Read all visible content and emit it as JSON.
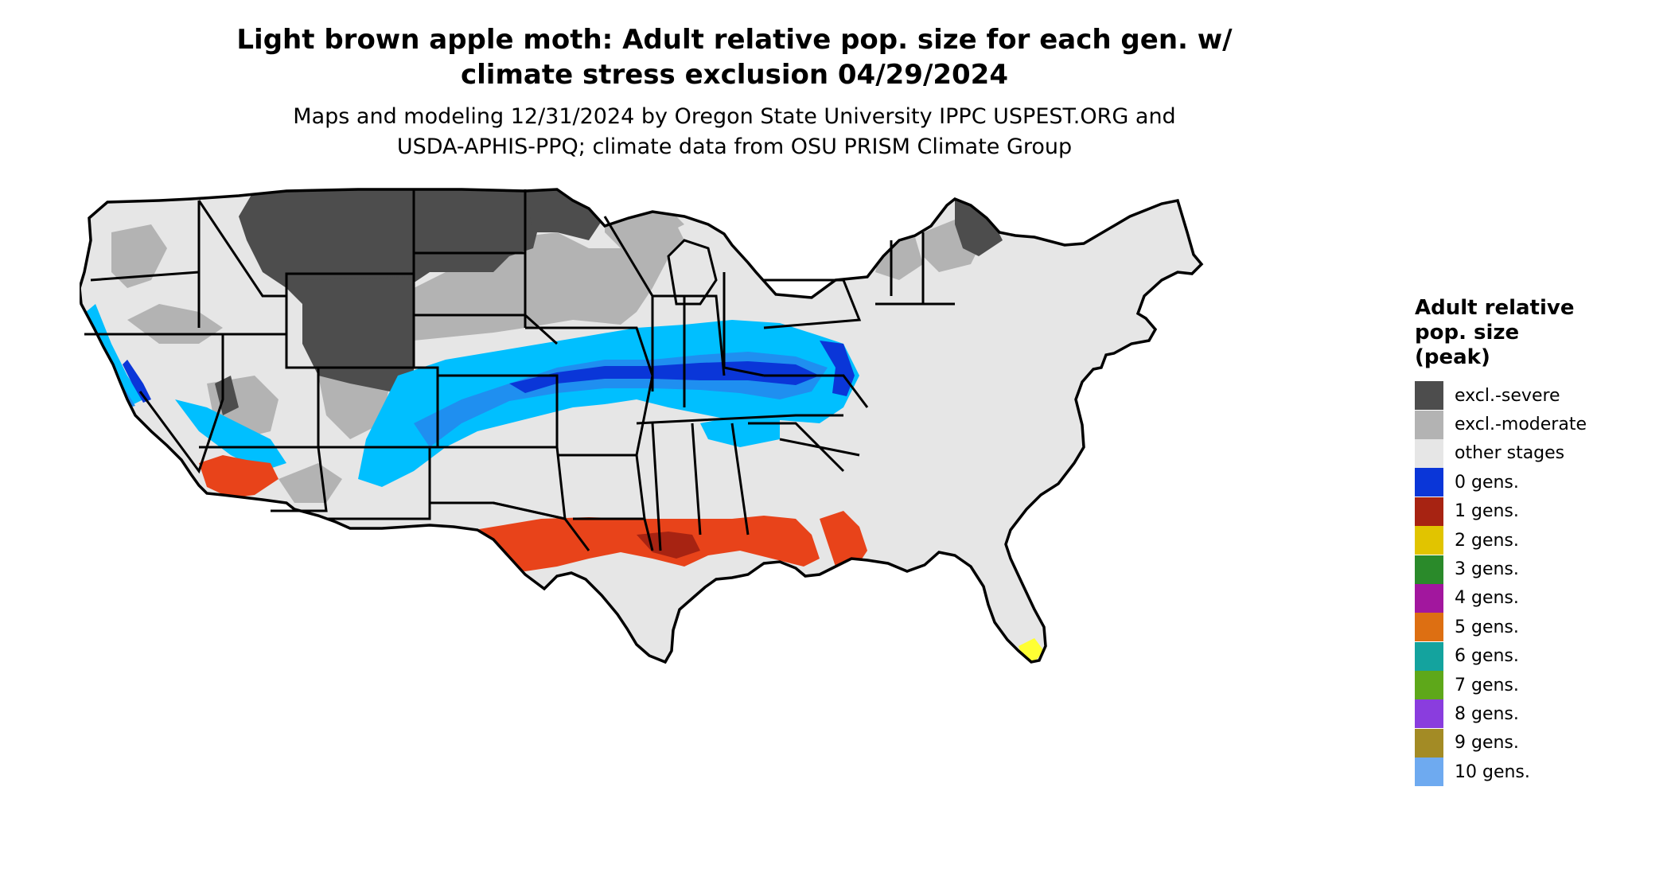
{
  "title": {
    "line1": "Light brown apple moth: Adult relative pop. size for each gen. w/",
    "line2": "climate stress exclusion 04/29/2024"
  },
  "subtitle": {
    "line1": "Maps and modeling 12/31/2024 by Oregon State University IPPC USPEST.ORG and",
    "line2": "USDA-APHIS-PPQ; climate data from OSU PRISM Climate Group"
  },
  "legend": {
    "title_line1": "Adult relative",
    "title_line2": "pop. size",
    "title_line3": "(peak)",
    "items": [
      {
        "label": "excl.-severe",
        "color": "#4d4d4d"
      },
      {
        "label": "excl.-moderate",
        "color": "#b3b3b3"
      },
      {
        "label": "other stages",
        "color": "#e6e6e6"
      },
      {
        "label": "0 gens.",
        "color": "#0a36d8"
      },
      {
        "label": "1 gens.",
        "color": "#a72312"
      },
      {
        "label": "2 gens.",
        "color": "#e1c400"
      },
      {
        "label": "3 gens.",
        "color": "#2a8a2a"
      },
      {
        "label": "4 gens.",
        "color": "#a2179e"
      },
      {
        "label": "5 gens.",
        "color": "#dd6f12"
      },
      {
        "label": "6 gens.",
        "color": "#14a39e"
      },
      {
        "label": "7 gens.",
        "color": "#5ea81a"
      },
      {
        "label": "8 gens.",
        "color": "#8a3dde"
      },
      {
        "label": "9 gens.",
        "color": "#a38b25"
      },
      {
        "label": "10 gens.",
        "color": "#6eaaf0"
      }
    ]
  },
  "map_colors": {
    "excl_severe": "#4d4d4d",
    "excl_moderate": "#b3b3b3",
    "other_stages": "#e6e6e6",
    "light_blue": "#00bfff",
    "mid_blue": "#1f8ff0",
    "deep_blue": "#0a36d8",
    "red_orange": "#e8431a",
    "dark_red": "#a72312",
    "yellow": "#ffff33",
    "borders": "#000000"
  }
}
